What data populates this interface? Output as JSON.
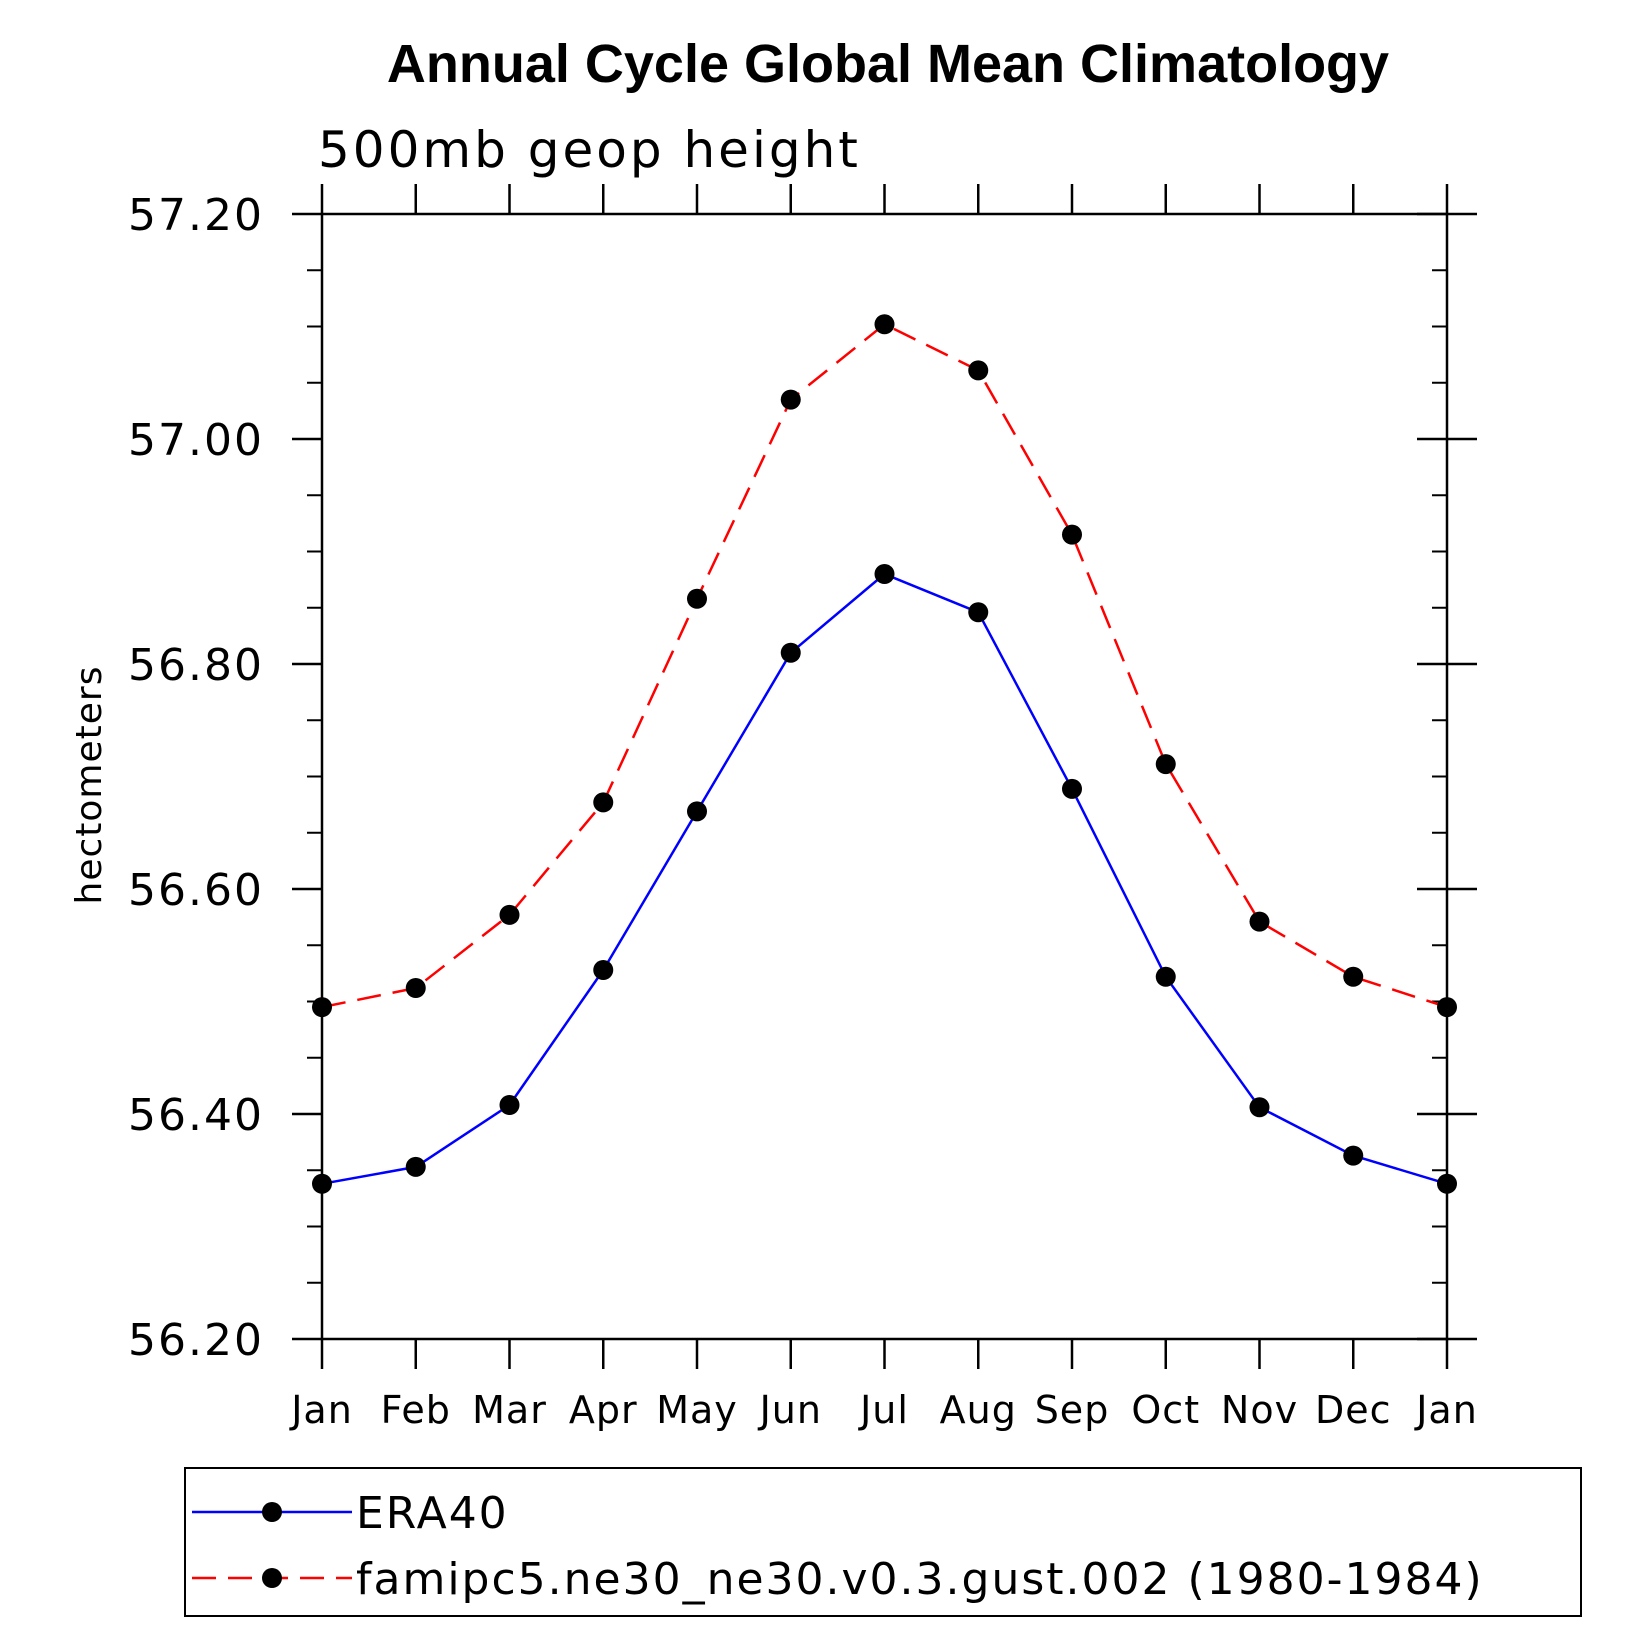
{
  "chart_data": {
    "type": "line",
    "title": "Annual Cycle Global Mean Climatology",
    "subtitle": "500mb geop height",
    "ylabel": "hectometers",
    "xlabel": "",
    "categories": [
      "Jan",
      "Feb",
      "Mar",
      "Apr",
      "May",
      "Jun",
      "Jul",
      "Aug",
      "Sep",
      "Oct",
      "Nov",
      "Dec",
      "Jan"
    ],
    "ylim": [
      56.2,
      57.2
    ],
    "yticks": [
      "56.20",
      "56.40",
      "56.60",
      "56.80",
      "57.00",
      "57.20"
    ],
    "ytick_values": [
      56.2,
      56.4,
      56.6,
      56.8,
      57.0,
      57.2
    ],
    "minor_ytick_step": 0.05,
    "grid": false,
    "legend_position": "bottom",
    "series": [
      {
        "name": "ERA40",
        "color": "#0000ff",
        "line_style": "solid",
        "marker": "filled-circle",
        "marker_color": "#000000",
        "values": [
          56.338,
          56.353,
          56.408,
          56.528,
          56.669,
          56.81,
          56.88,
          56.846,
          56.689,
          56.522,
          56.406,
          56.363,
          56.338
        ]
      },
      {
        "name": "famipc5.ne30_ne30.v0.3.gust.002 (1980-1984)",
        "color": "#ff0000",
        "line_style": "dashed",
        "marker": "filled-circle",
        "marker_color": "#000000",
        "values": [
          56.495,
          56.512,
          56.577,
          56.677,
          56.858,
          57.035,
          57.102,
          57.061,
          56.915,
          56.711,
          56.571,
          56.522,
          56.495
        ]
      }
    ]
  }
}
